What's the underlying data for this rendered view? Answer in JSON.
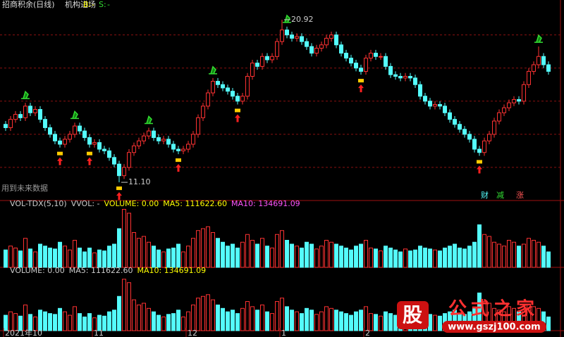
{
  "chart_data": {
    "type": "candlestick",
    "title": "招商积余(日线)",
    "indicator": "机构进场",
    "b_label": "B:",
    "b_value": "-",
    "s_label": "S:",
    "s_value": "-",
    "warning": "用到未来数据",
    "badges": [
      "财",
      "减",
      "涨"
    ],
    "ylim": [
      10,
      21.6
    ],
    "grid_values": [
      12,
      14,
      16,
      18,
      20
    ],
    "open": [
      14.6,
      14.4,
      14.9,
      15.2,
      15.0,
      15.7,
      15.3,
      15.5,
      14.9,
      14.4,
      14.0,
      13.6,
      13.4,
      13.7,
      14.0,
      14.5,
      14.2,
      13.8,
      13.4,
      13.5,
      13.1,
      13.0,
      12.6,
      12.2,
      11.5,
      12.0,
      12.9,
      13.3,
      13.6,
      13.9,
      14.2,
      13.8,
      13.6,
      13.7,
      13.4,
      13.1,
      13.0,
      13.1,
      13.4,
      14.0,
      15.0,
      15.7,
      16.5,
      17.2,
      17.0,
      16.8,
      16.6,
      16.3,
      16.0,
      16.3,
      17.5,
      18.3,
      18.1,
      18.7,
      18.5,
      18.7,
      19.6,
      20.3,
      20.0,
      19.8,
      19.9,
      19.6,
      19.3,
      18.9,
      19.2,
      19.4,
      19.8,
      20.0,
      19.4,
      18.9,
      18.6,
      18.3,
      18.0,
      17.8,
      18.6,
      18.9,
      18.7,
      18.7,
      18.1,
      17.6,
      17.5,
      17.4,
      17.5,
      17.4,
      17.0,
      16.3,
      16.0,
      15.7,
      15.8,
      15.7,
      15.3,
      14.9,
      14.6,
      14.3,
      14.0,
      13.7,
      13.1,
      12.9,
      13.6,
      14.0,
      14.8,
      15.3,
      15.6,
      15.9,
      16.1,
      16.0,
      17.0,
      17.8,
      18.2,
      18.7,
      18.2
    ],
    "close": [
      14.4,
      14.9,
      15.2,
      15.0,
      15.7,
      15.3,
      15.5,
      14.9,
      14.4,
      14.0,
      13.6,
      13.4,
      13.7,
      14.0,
      14.5,
      14.2,
      13.8,
      13.4,
      13.5,
      13.1,
      13.0,
      12.6,
      12.2,
      11.5,
      12.0,
      12.9,
      13.3,
      13.6,
      13.9,
      14.2,
      13.8,
      13.6,
      13.7,
      13.4,
      13.1,
      13.0,
      13.1,
      13.4,
      14.0,
      15.0,
      15.7,
      16.5,
      17.2,
      17.0,
      16.8,
      16.6,
      16.3,
      16.0,
      16.3,
      17.5,
      18.3,
      18.1,
      18.7,
      18.5,
      18.7,
      19.6,
      20.3,
      20.0,
      19.8,
      19.9,
      19.6,
      19.3,
      18.9,
      19.2,
      19.4,
      19.8,
      20.0,
      19.4,
      18.9,
      18.6,
      18.3,
      18.0,
      17.8,
      18.6,
      18.9,
      18.7,
      18.7,
      18.1,
      17.6,
      17.5,
      17.4,
      17.5,
      17.4,
      17.0,
      16.3,
      16.0,
      15.7,
      15.8,
      15.7,
      15.3,
      14.9,
      14.6,
      14.3,
      14.0,
      13.7,
      13.1,
      12.9,
      13.6,
      14.0,
      14.8,
      15.3,
      15.6,
      15.9,
      16.1,
      16.0,
      17.0,
      17.8,
      18.2,
      18.7,
      18.2,
      17.8
    ],
    "high": [
      14.8,
      15.1,
      15.4,
      15.4,
      15.9,
      15.9,
      15.7,
      15.7,
      15.1,
      14.6,
      14.2,
      13.8,
      13.9,
      14.2,
      14.7,
      14.7,
      14.4,
      14.0,
      13.7,
      13.7,
      13.3,
      13.2,
      12.8,
      12.4,
      12.2,
      13.1,
      13.5,
      13.8,
      14.1,
      14.4,
      14.4,
      14.0,
      13.9,
      13.9,
      13.6,
      13.3,
      13.3,
      13.6,
      14.2,
      15.2,
      15.9,
      16.7,
      17.4,
      17.4,
      17.2,
      17.0,
      16.8,
      16.5,
      16.5,
      17.7,
      18.5,
      18.5,
      18.9,
      18.9,
      18.9,
      19.8,
      20.92,
      20.5,
      20.2,
      20.1,
      20.1,
      19.8,
      19.5,
      19.4,
      19.6,
      20.0,
      20.2,
      20.2,
      19.6,
      19.1,
      18.8,
      18.5,
      18.2,
      18.8,
      19.1,
      19.1,
      18.9,
      18.9,
      18.3,
      17.8,
      17.7,
      17.7,
      17.7,
      17.6,
      17.2,
      16.5,
      16.2,
      16.0,
      16.0,
      15.9,
      15.5,
      15.1,
      14.8,
      14.5,
      14.2,
      13.9,
      13.3,
      13.8,
      14.2,
      15.0,
      15.5,
      15.8,
      16.1,
      16.3,
      16.3,
      17.2,
      18.0,
      18.4,
      19.3,
      18.9,
      18.4
    ],
    "low": [
      14.2,
      14.2,
      14.7,
      14.8,
      14.8,
      15.1,
      15.1,
      14.7,
      14.2,
      13.8,
      13.4,
      13.2,
      13.2,
      13.5,
      13.8,
      14.0,
      13.6,
      13.2,
      13.2,
      12.9,
      12.8,
      12.4,
      12.0,
      11.1,
      11.3,
      11.8,
      12.7,
      13.1,
      13.4,
      13.7,
      13.6,
      13.4,
      13.4,
      13.2,
      12.9,
      12.8,
      12.8,
      12.9,
      13.2,
      13.8,
      14.8,
      15.5,
      16.3,
      16.8,
      16.6,
      16.4,
      16.1,
      15.8,
      15.8,
      16.1,
      17.3,
      17.9,
      17.9,
      18.3,
      18.3,
      18.5,
      19.4,
      19.8,
      19.6,
      19.6,
      19.4,
      19.1,
      18.7,
      18.7,
      19.0,
      19.2,
      19.6,
      19.2,
      18.7,
      18.4,
      18.1,
      17.8,
      17.6,
      17.6,
      18.4,
      18.5,
      18.5,
      17.9,
      17.4,
      17.3,
      17.2,
      17.2,
      17.2,
      16.8,
      16.1,
      15.8,
      15.5,
      15.5,
      15.5,
      15.1,
      14.7,
      14.4,
      14.1,
      13.8,
      13.5,
      12.9,
      12.7,
      12.7,
      13.4,
      13.8,
      14.6,
      15.1,
      15.4,
      15.7,
      15.8,
      15.8,
      16.8,
      17.6,
      18.0,
      18.0,
      17.6
    ],
    "volume": [
      90000,
      110000,
      100000,
      85000,
      150000,
      95000,
      80000,
      120000,
      110000,
      100000,
      95000,
      130000,
      110000,
      90000,
      140000,
      100000,
      80000,
      100000,
      75000,
      90000,
      85000,
      110000,
      120000,
      200000,
      300000,
      280000,
      180000,
      150000,
      160000,
      130000,
      110000,
      90000,
      80000,
      95000,
      100000,
      120000,
      80000,
      110000,
      150000,
      190000,
      200000,
      210000,
      180000,
      150000,
      130000,
      110000,
      120000,
      100000,
      130000,
      170000,
      140000,
      120000,
      150000,
      110000,
      100000,
      170000,
      190000,
      140000,
      120000,
      110000,
      100000,
      130000,
      120000,
      95000,
      110000,
      140000,
      130000,
      120000,
      110000,
      100000,
      90000,
      110000,
      120000,
      140000,
      100000,
      95000,
      85000,
      110000,
      100000,
      90000,
      80000,
      95000,
      85000,
      90000,
      110000,
      100000,
      95000,
      90000,
      85000,
      100000,
      110000,
      120000,
      100000,
      95000,
      110000,
      130000,
      220000,
      170000,
      160000,
      130000,
      120000,
      110000,
      140000,
      130000,
      110000,
      120000,
      150000,
      140000,
      130000,
      110000,
      80000
    ],
    "vlim": [
      0,
      320000
    ],
    "hat_signals": [
      4,
      14,
      29,
      42,
      57,
      108
    ],
    "arrow_signals": [
      11,
      17,
      23,
      35,
      47,
      72,
      96
    ],
    "annotations": [
      {
        "index": 56,
        "value": 20.92,
        "label": "20.92"
      },
      {
        "index": 23,
        "value": 11.1,
        "label": "11.10"
      }
    ],
    "panel1_texts": [
      "VOL-TDX(5,10)",
      "VVOL: -",
      "VOLUME: 0.00",
      "MA5: 111622.60",
      "MA10: 134691.09"
    ],
    "panel2_texts": [
      "VOLUME: 0.00",
      "MA5: 111622.60",
      "MA10: 134691.09"
    ],
    "date_ticks": [
      {
        "index": 0,
        "label": "2021年10"
      },
      {
        "index": 18,
        "label": "11"
      },
      {
        "index": 37,
        "label": "12"
      },
      {
        "index": 56,
        "label": "1"
      },
      {
        "index": 73,
        "label": "2"
      }
    ],
    "up_color": "#ff3232",
    "down_color": "#54fcfc"
  },
  "watermark": {
    "logo": "股",
    "name": "公式之家",
    "url": "www.gszj100.com"
  }
}
